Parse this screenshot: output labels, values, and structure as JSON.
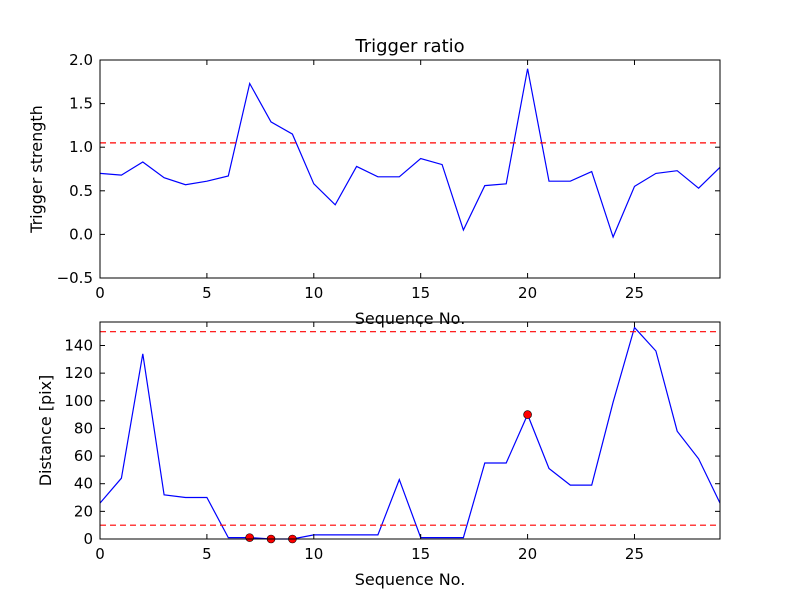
{
  "chart_data": [
    {
      "type": "line",
      "title": "Trigger ratio",
      "xlabel": "Sequence No.",
      "ylabel": "Trigger strength",
      "xlim": [
        0,
        29
      ],
      "ylim": [
        -0.5,
        2.0
      ],
      "xticks": [
        0,
        5,
        10,
        15,
        20,
        25
      ],
      "xtick_labels": [
        "0",
        "5",
        "10",
        "15",
        "20",
        "25"
      ],
      "yticks": [
        -0.5,
        0.0,
        0.5,
        1.0,
        1.5,
        2.0
      ],
      "ytick_labels": [
        "−0.5",
        "0.0",
        "0.5",
        "1.0",
        "1.5",
        "2.0"
      ],
      "grid": false,
      "series": [
        {
          "color": "#0000ff",
          "x": [
            0,
            1,
            2,
            3,
            4,
            5,
            6,
            7,
            8,
            9,
            10,
            11,
            12,
            13,
            14,
            15,
            16,
            17,
            18,
            19,
            20,
            21,
            22,
            23,
            24,
            25,
            26,
            27,
            28,
            29
          ],
          "values": [
            0.7,
            0.68,
            0.83,
            0.65,
            0.57,
            0.61,
            0.67,
            1.73,
            1.29,
            1.15,
            0.58,
            0.34,
            0.78,
            0.66,
            0.66,
            0.87,
            0.8,
            0.05,
            0.56,
            0.58,
            1.9,
            0.61,
            0.61,
            0.72,
            -0.03,
            0.55,
            0.7,
            0.73,
            0.53,
            0.77
          ]
        }
      ],
      "hlines": [
        {
          "y": 1.05,
          "color": "#ff0000",
          "style": "dashed"
        }
      ],
      "markers": []
    },
    {
      "type": "line",
      "title": "",
      "xlabel": "Sequence No.",
      "ylabel": "Distance [pix]",
      "xlim": [
        0,
        29
      ],
      "ylim": [
        0,
        157
      ],
      "xticks": [
        0,
        5,
        10,
        15,
        20,
        25
      ],
      "xtick_labels": [
        "0",
        "5",
        "10",
        "15",
        "20",
        "25"
      ],
      "yticks": [
        0,
        20,
        40,
        60,
        80,
        100,
        120,
        140
      ],
      "ytick_labels": [
        "0",
        "20",
        "40",
        "60",
        "80",
        "100",
        "120",
        "140"
      ],
      "grid": false,
      "series": [
        {
          "color": "#0000ff",
          "x": [
            0,
            1,
            2,
            3,
            4,
            5,
            6,
            7,
            8,
            9,
            10,
            11,
            12,
            13,
            14,
            15,
            16,
            17,
            18,
            19,
            20,
            21,
            22,
            23,
            24,
            25,
            26,
            27,
            28,
            29
          ],
          "values": [
            26,
            44,
            134,
            32,
            30,
            30,
            1,
            1,
            0,
            0,
            3,
            3,
            3,
            3,
            43,
            1,
            1,
            1,
            55,
            55,
            90,
            51,
            39,
            39,
            99,
            153,
            136,
            78,
            58,
            26
          ]
        }
      ],
      "hlines": [
        {
          "y": 150,
          "color": "#ff0000",
          "style": "dashed"
        },
        {
          "y": 10,
          "color": "#ff0000",
          "style": "dashed"
        }
      ],
      "markers": [
        {
          "x": 7,
          "y": 1,
          "color": "#ff0000"
        },
        {
          "x": 8,
          "y": 0,
          "color": "#ff0000"
        },
        {
          "x": 9,
          "y": 0,
          "color": "#ff0000"
        },
        {
          "x": 20,
          "y": 90,
          "color": "#ff0000"
        }
      ]
    }
  ]
}
